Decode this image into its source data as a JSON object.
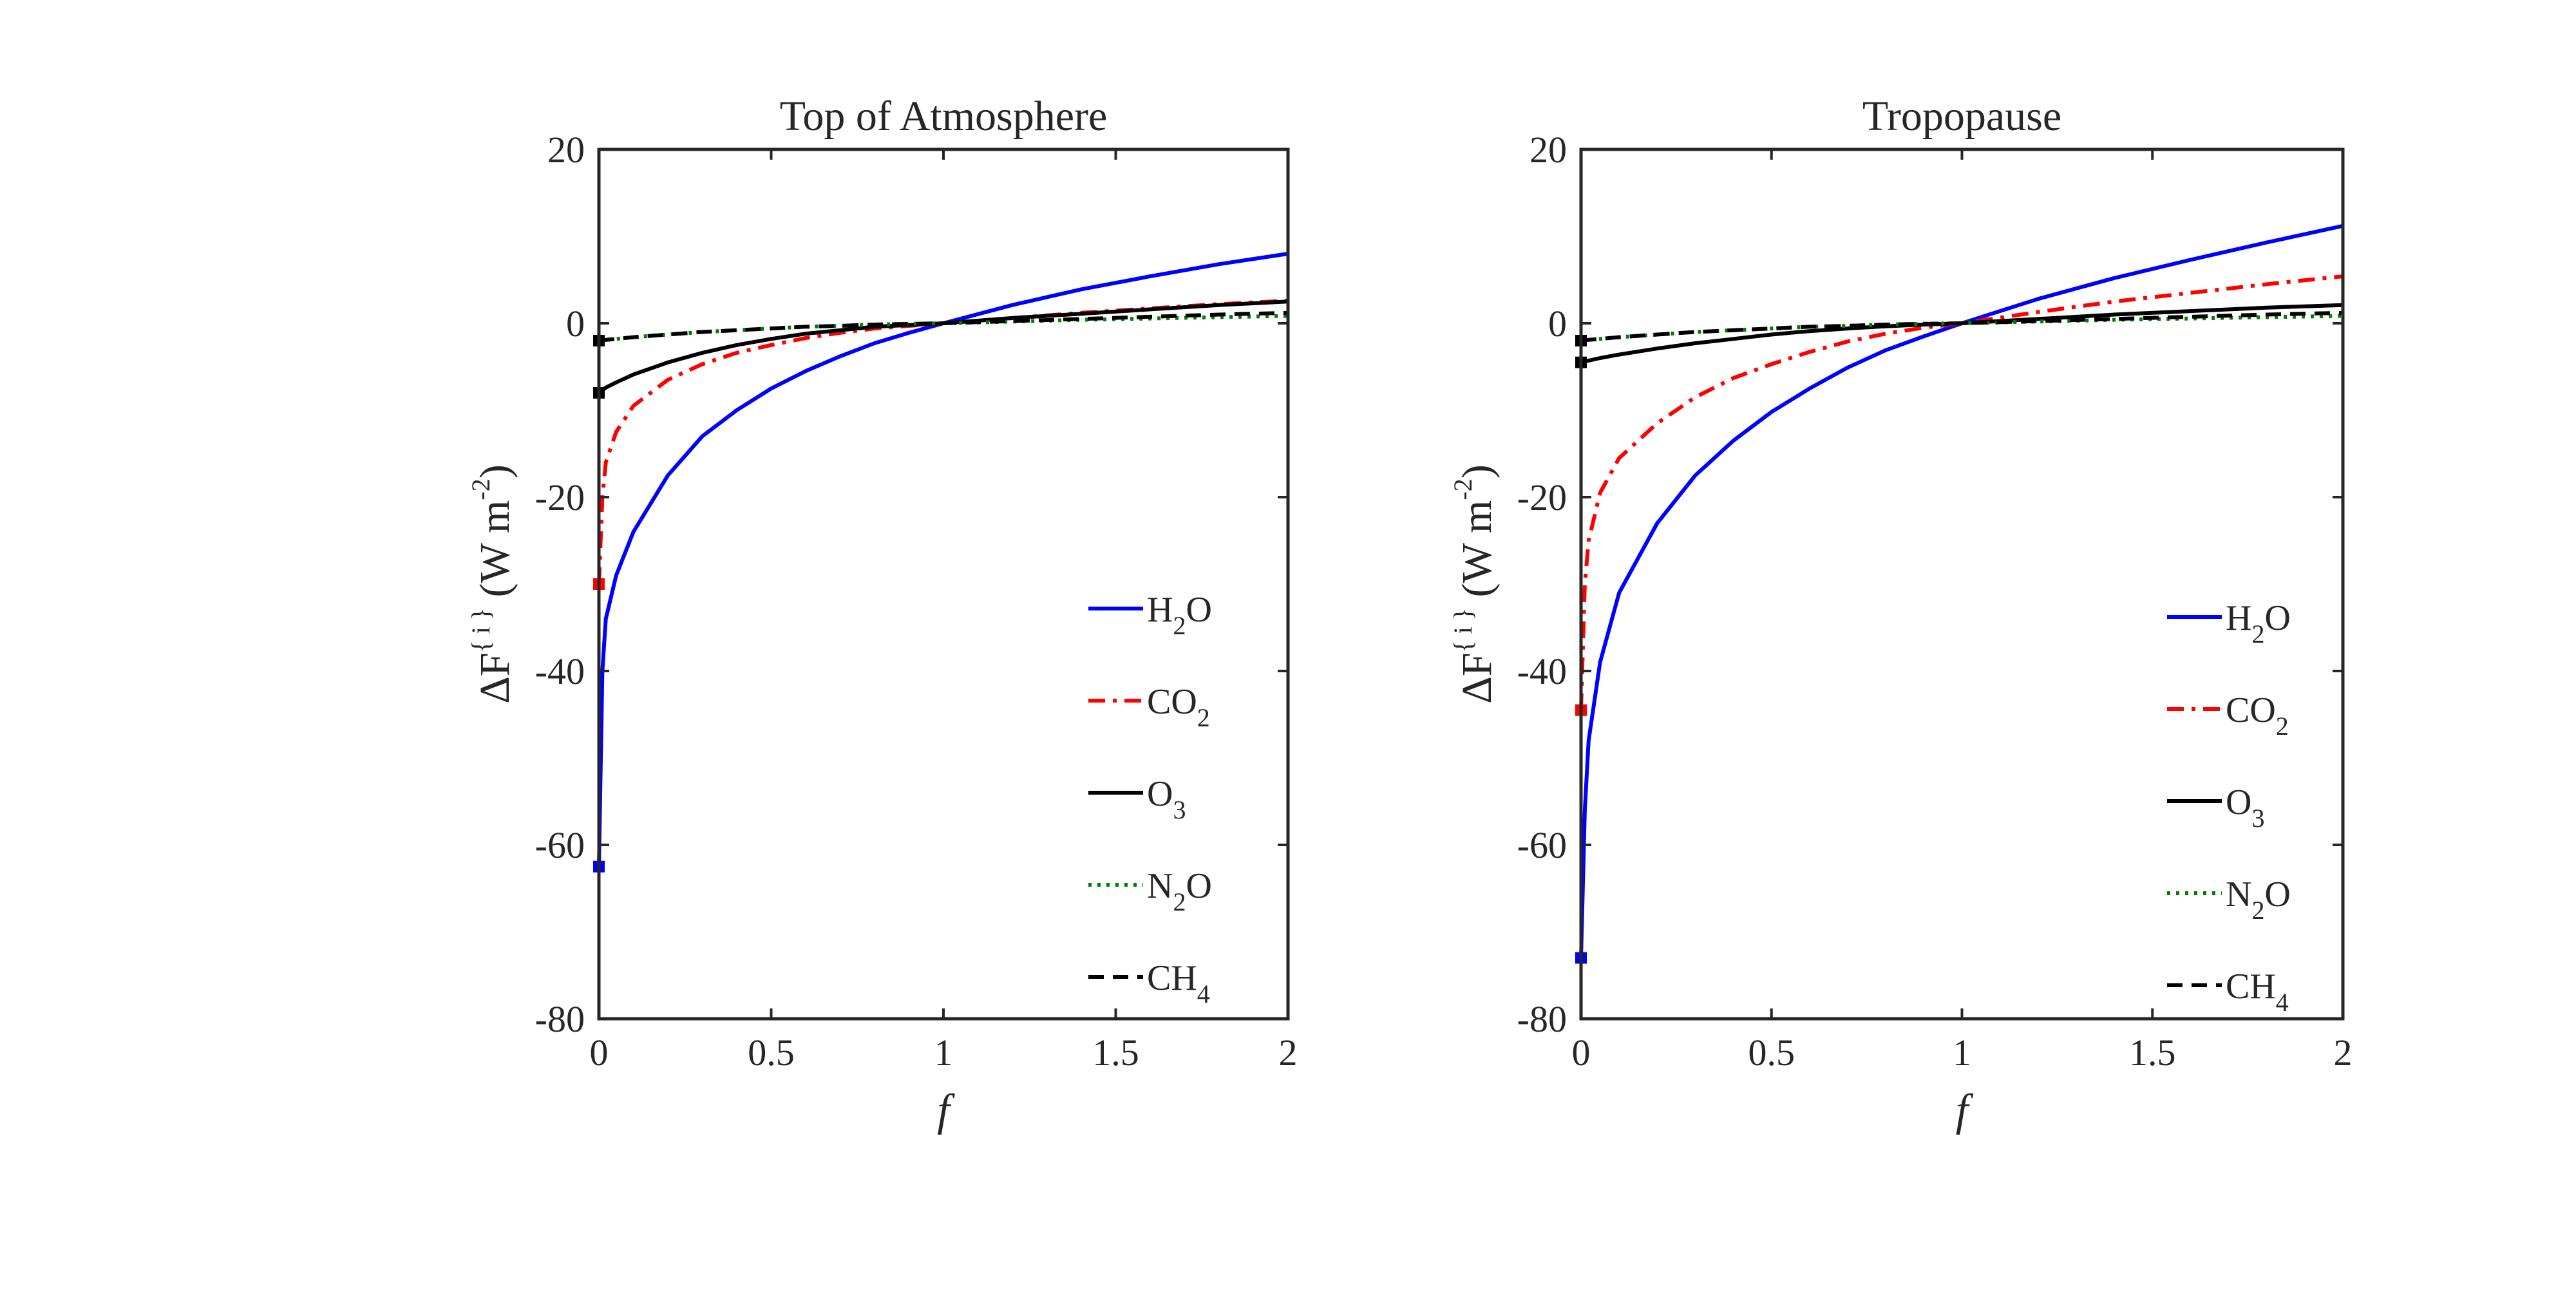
{
  "chart_data": [
    {
      "type": "line",
      "title": "Top of Atmosphere",
      "xlabel": "f",
      "ylabel": "ΔF^{i} (W m^-2)",
      "xlim": [
        0,
        2
      ],
      "ylim": [
        -80,
        20
      ],
      "xticks": [
        "0",
        "0.5",
        "1",
        "1.5",
        "2"
      ],
      "yticks": [
        "20",
        "0",
        "-20",
        "-40",
        "-60",
        "-80"
      ],
      "legend": {
        "position": "right-lower-middle"
      },
      "x": [
        0,
        0.01,
        0.02,
        0.05,
        0.1,
        0.2,
        0.3,
        0.4,
        0.5,
        0.6,
        0.7,
        0.8,
        0.9,
        1.0,
        1.2,
        1.4,
        1.6,
        1.8,
        2.0
      ],
      "series": [
        {
          "name": "H2O",
          "label_main": "H",
          "label_sub": "2",
          "label_tail": "O",
          "color": "#0000ff",
          "dash": "solid",
          "values": [
            -62.5,
            -40,
            -34,
            -29,
            -24,
            -17.5,
            -13,
            -10,
            -7.5,
            -5.5,
            -3.8,
            -2.3,
            -1.1,
            0,
            2.1,
            3.9,
            5.4,
            6.8,
            8.0
          ]
        },
        {
          "name": "CO2",
          "label_main": "CO",
          "label_sub": "2",
          "label_tail": "",
          "color": "#ff0000",
          "dash": "dashdot",
          "values": [
            -30,
            -20,
            -16,
            -12.5,
            -9.5,
            -6.5,
            -4.7,
            -3.4,
            -2.5,
            -1.7,
            -1.1,
            -0.6,
            -0.3,
            0,
            0.6,
            1.2,
            1.7,
            2.2,
            2.6
          ]
        },
        {
          "name": "O3",
          "label_main": "O",
          "label_sub": "3",
          "label_tail": "",
          "color": "#000000",
          "dash": "solid",
          "values": [
            -8,
            -7.7,
            -7.4,
            -6.8,
            -5.9,
            -4.5,
            -3.4,
            -2.5,
            -1.8,
            -1.2,
            -0.8,
            -0.4,
            -0.2,
            0,
            0.6,
            1.1,
            1.6,
            2.1,
            2.5
          ]
        },
        {
          "name": "N2O",
          "label_main": "N",
          "label_sub": "2",
          "label_tail": "O",
          "color": "#008000",
          "dash": "dot",
          "values": [
            -2,
            -1.95,
            -1.9,
            -1.8,
            -1.6,
            -1.3,
            -1.0,
            -0.8,
            -0.6,
            -0.4,
            -0.3,
            -0.15,
            -0.07,
            0,
            0.2,
            0.4,
            0.55,
            0.7,
            0.85
          ]
        },
        {
          "name": "CH4",
          "label_main": "CH",
          "label_sub": "4",
          "label_tail": "",
          "color": "#000000",
          "dash": "dash",
          "values": [
            -2,
            -1.95,
            -1.9,
            -1.8,
            -1.6,
            -1.3,
            -1.0,
            -0.8,
            -0.6,
            -0.4,
            -0.3,
            -0.15,
            -0.07,
            0,
            0.25,
            0.5,
            0.75,
            1.0,
            1.2
          ]
        }
      ]
    },
    {
      "type": "line",
      "title": "Tropopause",
      "xlabel": "f",
      "ylabel": "ΔF^{i} (W m^-2)",
      "xlim": [
        0,
        2
      ],
      "ylim": [
        -80,
        20
      ],
      "xticks": [
        "0",
        "0.5",
        "1",
        "1.5",
        "2"
      ],
      "yticks": [
        "20",
        "0",
        "-20",
        "-40",
        "-60",
        "-80"
      ],
      "legend": {
        "position": "bottom-right"
      },
      "x": [
        0,
        0.01,
        0.02,
        0.05,
        0.1,
        0.2,
        0.3,
        0.4,
        0.5,
        0.6,
        0.7,
        0.8,
        0.9,
        1.0,
        1.2,
        1.4,
        1.6,
        1.8,
        2.0
      ],
      "series": [
        {
          "name": "H2O",
          "label_main": "H",
          "label_sub": "2",
          "label_tail": "O",
          "color": "#0000ff",
          "dash": "solid",
          "values": [
            -73,
            -56,
            -48,
            -39,
            -31,
            -23,
            -17.5,
            -13.5,
            -10.2,
            -7.5,
            -5.1,
            -3.1,
            -1.5,
            0,
            2.8,
            5.2,
            7.3,
            9.3,
            11.2
          ]
        },
        {
          "name": "CO2",
          "label_main": "CO",
          "label_sub": "2",
          "label_tail": "",
          "color": "#ff0000",
          "dash": "dashdot",
          "values": [
            -44.5,
            -30,
            -25,
            -19.5,
            -15.5,
            -11.5,
            -8.5,
            -6.3,
            -4.7,
            -3.3,
            -2.1,
            -1.2,
            -0.5,
            0,
            1.3,
            2.5,
            3.5,
            4.5,
            5.4
          ]
        },
        {
          "name": "O3",
          "label_main": "O",
          "label_sub": "3",
          "label_tail": "",
          "color": "#000000",
          "dash": "solid",
          "values": [
            -4.5,
            -4.4,
            -4.3,
            -4.0,
            -3.6,
            -2.9,
            -2.3,
            -1.8,
            -1.3,
            -0.9,
            -0.6,
            -0.35,
            -0.15,
            0,
            0.5,
            1.0,
            1.4,
            1.8,
            2.1
          ]
        },
        {
          "name": "N2O",
          "label_main": "N",
          "label_sub": "2",
          "label_tail": "O",
          "color": "#008000",
          "dash": "dot",
          "values": [
            -2,
            -1.95,
            -1.9,
            -1.8,
            -1.6,
            -1.3,
            -1.0,
            -0.8,
            -0.6,
            -0.4,
            -0.3,
            -0.15,
            -0.07,
            0,
            0.2,
            0.4,
            0.55,
            0.7,
            0.85
          ]
        },
        {
          "name": "CH4",
          "label_main": "CH",
          "label_sub": "4",
          "label_tail": "",
          "color": "#000000",
          "dash": "dash",
          "values": [
            -2,
            -1.95,
            -1.9,
            -1.8,
            -1.6,
            -1.3,
            -1.0,
            -0.8,
            -0.6,
            -0.4,
            -0.3,
            -0.15,
            -0.07,
            0,
            0.25,
            0.5,
            0.75,
            1.0,
            1.2
          ]
        }
      ]
    }
  ]
}
